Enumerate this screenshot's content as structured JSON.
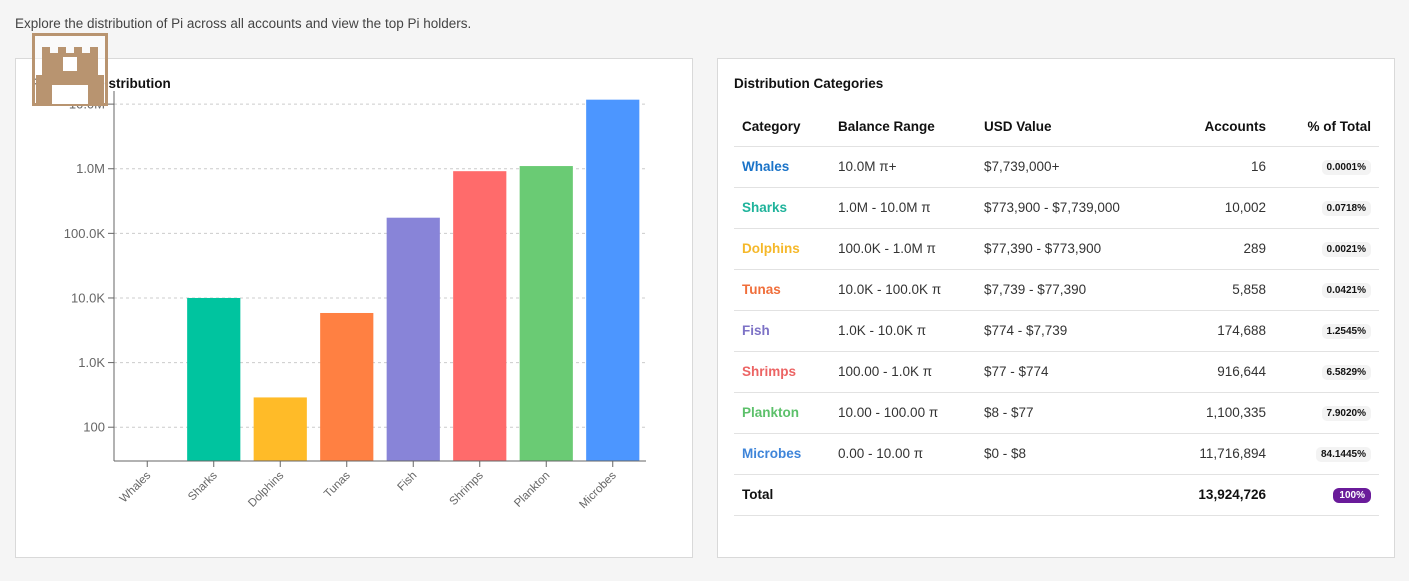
{
  "intro_text": "Explore the distribution of Pi across all accounts and view the top Pi holders.",
  "chart_card": {
    "title": "Pi Holder Distribution"
  },
  "table_card": {
    "title": "Distribution Categories"
  },
  "chart_data": {
    "type": "bar",
    "title": "Pi Holder Distribution",
    "yscale": "log",
    "ylim": [
      30,
      12000000
    ],
    "grid": true,
    "legend": "none",
    "categories": [
      "Whales",
      "Sharks",
      "Dolphins",
      "Tunas",
      "Fish",
      "Shrimps",
      "Plankton",
      "Microbes"
    ],
    "values": [
      16,
      10002,
      289,
      5858,
      174688,
      916644,
      1100335,
      11716894
    ],
    "colors": [
      "#1a73c8",
      "#00c49f",
      "#ffbb28",
      "#ff8042",
      "#8884d8",
      "#ff6b6b",
      "#6acb74",
      "#4c96ff"
    ],
    "yticks": [
      {
        "value": 100,
        "label": "100"
      },
      {
        "value": 1000,
        "label": "1.0K"
      },
      {
        "value": 10000,
        "label": "10.0K"
      },
      {
        "value": 100000,
        "label": "100.0K"
      },
      {
        "value": 1000000,
        "label": "1.0M"
      },
      {
        "value": 10000000,
        "label": "10.0M"
      }
    ]
  },
  "table": {
    "headers": {
      "category": "Category",
      "range": "Balance Range",
      "usd": "USD Value",
      "accounts": "Accounts",
      "pct": "% of Total"
    },
    "rows": [
      {
        "category": "Whales",
        "color": "#1a73c8",
        "range": "10.0M π+",
        "usd": "$7,739,000+",
        "accounts": "16",
        "pct": "0.0001%"
      },
      {
        "category": "Sharks",
        "color": "#1fb39b",
        "range": "1.0M - 10.0M π",
        "usd": "$773,900 - $7,739,000",
        "accounts": "10,002",
        "pct": "0.0718%"
      },
      {
        "category": "Dolphins",
        "color": "#f5b82a",
        "range": "100.0K - 1.0M π",
        "usd": "$77,390 - $773,900",
        "accounts": "289",
        "pct": "0.0021%"
      },
      {
        "category": "Tunas",
        "color": "#f06e3a",
        "range": "10.0K - 100.0K π",
        "usd": "$7,739 - $77,390",
        "accounts": "5,858",
        "pct": "0.0421%"
      },
      {
        "category": "Fish",
        "color": "#7d72c6",
        "range": "1.0K - 10.0K π",
        "usd": "$774 - $7,739",
        "accounts": "174,688",
        "pct": "1.2545%"
      },
      {
        "category": "Shrimps",
        "color": "#ec6464",
        "range": "100.00 - 1.0K π",
        "usd": "$77 - $774",
        "accounts": "916,644",
        "pct": "6.5829%"
      },
      {
        "category": "Plankton",
        "color": "#5cc06a",
        "range": "10.00 - 100.00 π",
        "usd": "$8 - $77",
        "accounts": "1,100,335",
        "pct": "7.9020%"
      },
      {
        "category": "Microbes",
        "color": "#3f85d9",
        "range": "0.00 - 10.00 π",
        "usd": "$0 - $8",
        "accounts": "11,716,894",
        "pct": "84.1445%"
      }
    ],
    "total": {
      "label": "Total",
      "accounts": "13,924,726",
      "pct": "100%",
      "pct_color": "#6a1b9a"
    }
  },
  "logo": {
    "icon": "castle-tower-logo",
    "color": "#b89470"
  }
}
